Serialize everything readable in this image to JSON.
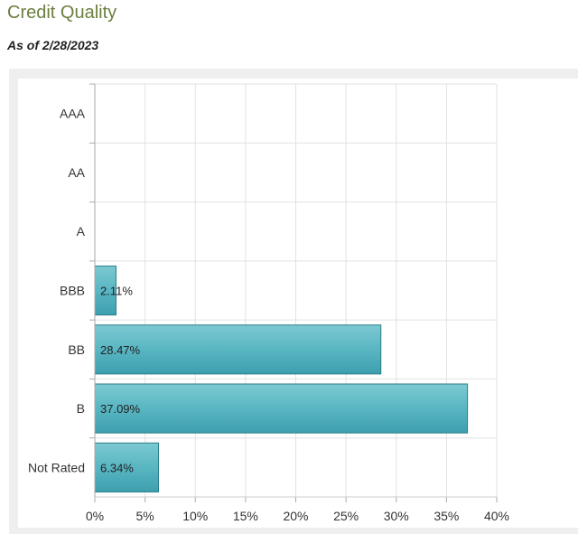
{
  "header": {
    "title": "Credit Quality",
    "subtitle": "As of 2/28/2023"
  },
  "chart_data": {
    "type": "bar",
    "orientation": "horizontal",
    "categories": [
      "AAA",
      "AA",
      "A",
      "BBB",
      "BB",
      "B",
      "Not Rated"
    ],
    "values": [
      null,
      null,
      null,
      2.11,
      28.47,
      37.09,
      6.34
    ],
    "data_labels": [
      "",
      "",
      "",
      "2.11%",
      "28.47%",
      "37.09%",
      "6.34%"
    ],
    "x_ticks": [
      "0%",
      "5%",
      "10%",
      "15%",
      "20%",
      "25%",
      "30%",
      "35%",
      "40%"
    ],
    "xlim": [
      0,
      40
    ],
    "xlabel": "",
    "ylabel": "",
    "grid": true,
    "colors": {
      "bar_fill": "#4fb0bd",
      "bar_stroke": "#2a7f8a",
      "title": "#6b7f3e"
    }
  }
}
